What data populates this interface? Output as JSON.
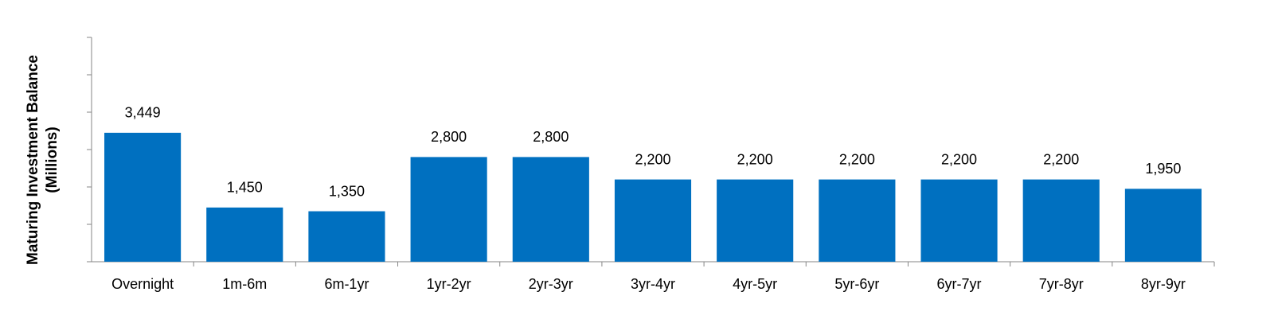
{
  "chart_data": {
    "type": "bar",
    "ylabel": [
      "Maturing Investment Balance",
      "(Millions)"
    ],
    "categories": [
      "Overnight",
      "1m-6m",
      "6m-1yr",
      "1yr-2yr",
      "2yr-3yr",
      "3yr-4yr",
      "4yr-5yr",
      "5yr-6yr",
      "6yr-7yr",
      "7yr-8yr",
      "8yr-9yr"
    ],
    "values": [
      3449,
      1450,
      1350,
      2800,
      2800,
      2200,
      2200,
      2200,
      2200,
      2200,
      1950
    ],
    "value_labels": [
      "3,449",
      "1,450",
      "1,350",
      "2,800",
      "2,800",
      "2,200",
      "2,200",
      "2,200",
      "2,200",
      "2,200",
      "1,950"
    ],
    "color": "#0070c0",
    "ylim": [
      0,
      6000
    ],
    "yticks": [
      0,
      1000,
      2000,
      3000,
      4000,
      5000,
      6000
    ],
    "grid": false
  }
}
